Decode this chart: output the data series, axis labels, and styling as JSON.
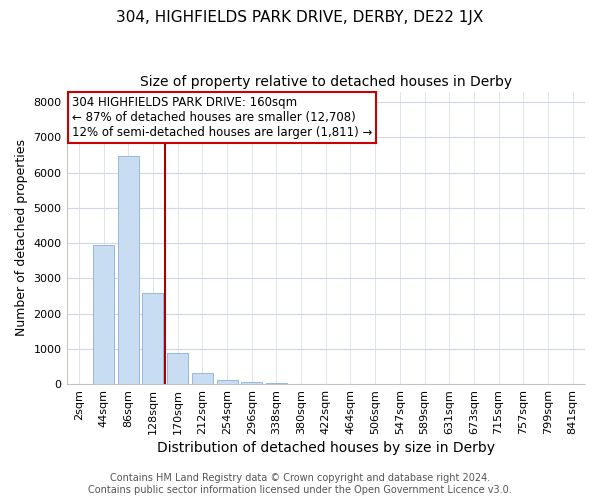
{
  "title": "304, HIGHFIELDS PARK DRIVE, DERBY, DE22 1JX",
  "subtitle": "Size of property relative to detached houses in Derby",
  "xlabel": "Distribution of detached houses by size in Derby",
  "ylabel": "Number of detached properties",
  "categories": [
    "2sqm",
    "44sqm",
    "86sqm",
    "128sqm",
    "170sqm",
    "212sqm",
    "254sqm",
    "296sqm",
    "338sqm",
    "380sqm",
    "422sqm",
    "464sqm",
    "506sqm",
    "547sqm",
    "589sqm",
    "631sqm",
    "673sqm",
    "715sqm",
    "757sqm",
    "799sqm",
    "841sqm"
  ],
  "values": [
    0,
    3960,
    6480,
    2570,
    890,
    310,
    110,
    55,
    20,
    8,
    4,
    3,
    2,
    1,
    1,
    0,
    0,
    0,
    0,
    0,
    0
  ],
  "bar_color": "#c9ddf2",
  "bar_edge_color": "#8ab0d8",
  "vline_color": "#aa0000",
  "annotation_text": "304 HIGHFIELDS PARK DRIVE: 160sqm\n← 87% of detached houses are smaller (12,708)\n12% of semi-detached houses are larger (1,811) →",
  "annotation_box_facecolor": "#ffffff",
  "annotation_box_edgecolor": "#cc0000",
  "ylim": [
    0,
    8300
  ],
  "yticks": [
    0,
    1000,
    2000,
    3000,
    4000,
    5000,
    6000,
    7000,
    8000
  ],
  "figure_bg": "#ffffff",
  "axes_bg": "#ffffff",
  "grid_color": "#d0d8e8",
  "title_fontsize": 11,
  "subtitle_fontsize": 10,
  "xlabel_fontsize": 10,
  "ylabel_fontsize": 9,
  "tick_fontsize": 8,
  "annotation_fontsize": 8.5,
  "footer_fontsize": 7,
  "footer_text": "Contains HM Land Registry data © Crown copyright and database right 2024.\nContains public sector information licensed under the Open Government Licence v3.0."
}
